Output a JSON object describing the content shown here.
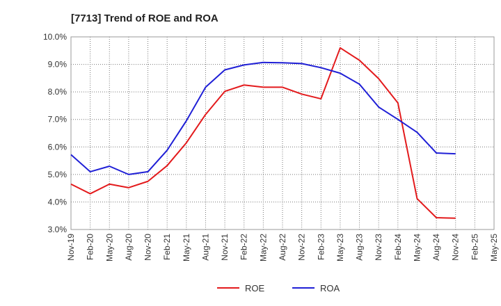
{
  "chart_data": {
    "type": "line",
    "title": "[7713]  Trend of ROE and ROA",
    "xlabel": "",
    "ylabel": "",
    "ylim": [
      3.0,
      10.0
    ],
    "y_ticks": [
      "3.0%",
      "4.0%",
      "5.0%",
      "6.0%",
      "7.0%",
      "8.0%",
      "9.0%",
      "10.0%"
    ],
    "x_labels": [
      "Nov-19",
      "Feb-20",
      "May-20",
      "Aug-20",
      "Nov-20",
      "Feb-21",
      "May-21",
      "Aug-21",
      "Nov-21",
      "Feb-22",
      "May-22",
      "Aug-22",
      "Nov-22",
      "Feb-23",
      "May-23",
      "Aug-23",
      "Nov-23",
      "Feb-24",
      "May-24",
      "Aug-24",
      "Nov-24",
      "Feb-25",
      "May-25"
    ],
    "grid": true,
    "legend_position": "bottom",
    "series": [
      {
        "name": "ROE",
        "color": "#e31a1c",
        "values": [
          4.65,
          4.3,
          4.65,
          4.52,
          4.75,
          5.32,
          6.15,
          7.18,
          8.02,
          8.25,
          8.17,
          8.17,
          7.92,
          7.75,
          9.6,
          9.15,
          8.48,
          7.6,
          4.12,
          3.43,
          3.41,
          null,
          null
        ]
      },
      {
        "name": "ROA",
        "color": "#1f1fd6",
        "values": [
          5.72,
          5.1,
          5.3,
          5.0,
          5.1,
          5.88,
          6.95,
          8.17,
          8.8,
          8.98,
          9.07,
          9.06,
          9.03,
          8.88,
          8.68,
          8.28,
          7.45,
          7.0,
          6.53,
          5.78,
          5.75,
          null,
          null
        ]
      }
    ]
  }
}
